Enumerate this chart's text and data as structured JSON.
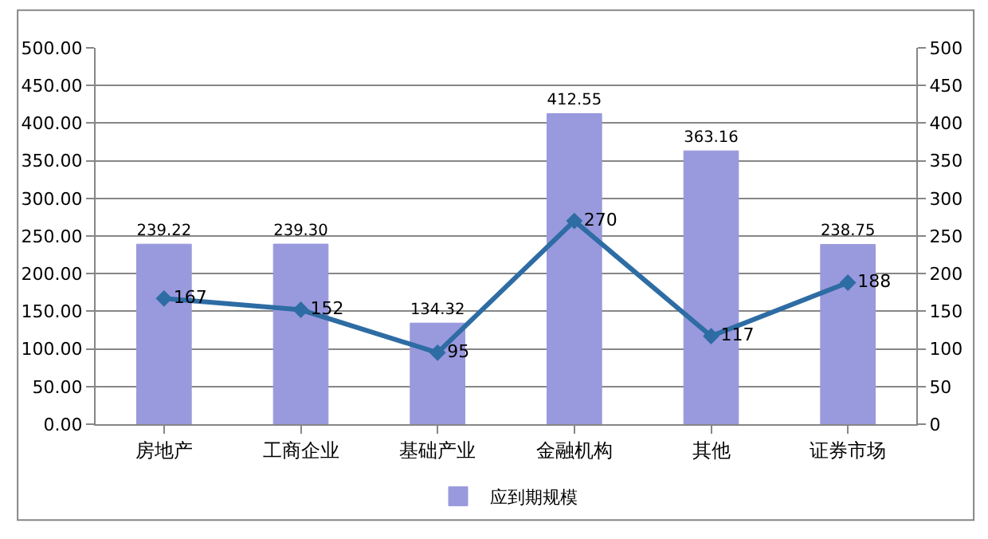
{
  "chart_data": {
    "type": "bar",
    "categories": [
      "房地产",
      "工商企业",
      "基础产业",
      "金融机构",
      "其他",
      "证券市场"
    ],
    "series": [
      {
        "name": "应到期规模",
        "color": "#9999dd",
        "values": [
          239.22,
          239.3,
          134.32,
          412.55,
          363.16,
          238.75
        ],
        "value_labels": [
          "239.22",
          "239.30",
          "134.32",
          "412.55",
          "363.16",
          "238.75"
        ]
      },
      {
        "type": "line",
        "axis": "y2",
        "color": "#2e6ca4",
        "values": [
          167,
          152,
          95,
          270,
          117,
          188
        ],
        "value_labels": [
          "167",
          "152",
          "95",
          "270",
          "117",
          "188"
        ]
      }
    ],
    "ylim": [
      0,
      500
    ],
    "yticks": [
      {
        "value": 0,
        "label": "0.00"
      },
      {
        "value": 50,
        "label": "50.00"
      },
      {
        "value": 100,
        "label": "100.00"
      },
      {
        "value": 150,
        "label": "150.00"
      },
      {
        "value": 200,
        "label": "200.00"
      },
      {
        "value": 250,
        "label": "250.00"
      },
      {
        "value": 300,
        "label": "300.00"
      },
      {
        "value": 350,
        "label": "350.00"
      },
      {
        "value": 400,
        "label": "400.00"
      },
      {
        "value": 450,
        "label": "450.00"
      },
      {
        "value": 500,
        "label": "500.00"
      }
    ],
    "y2lim": [
      0,
      500
    ],
    "y2ticks": [
      0,
      50,
      100,
      150,
      200,
      250,
      300,
      350,
      400,
      450,
      500
    ],
    "grid": "y",
    "legend": "bottom",
    "marker": "diamond",
    "line_style": "solid"
  }
}
